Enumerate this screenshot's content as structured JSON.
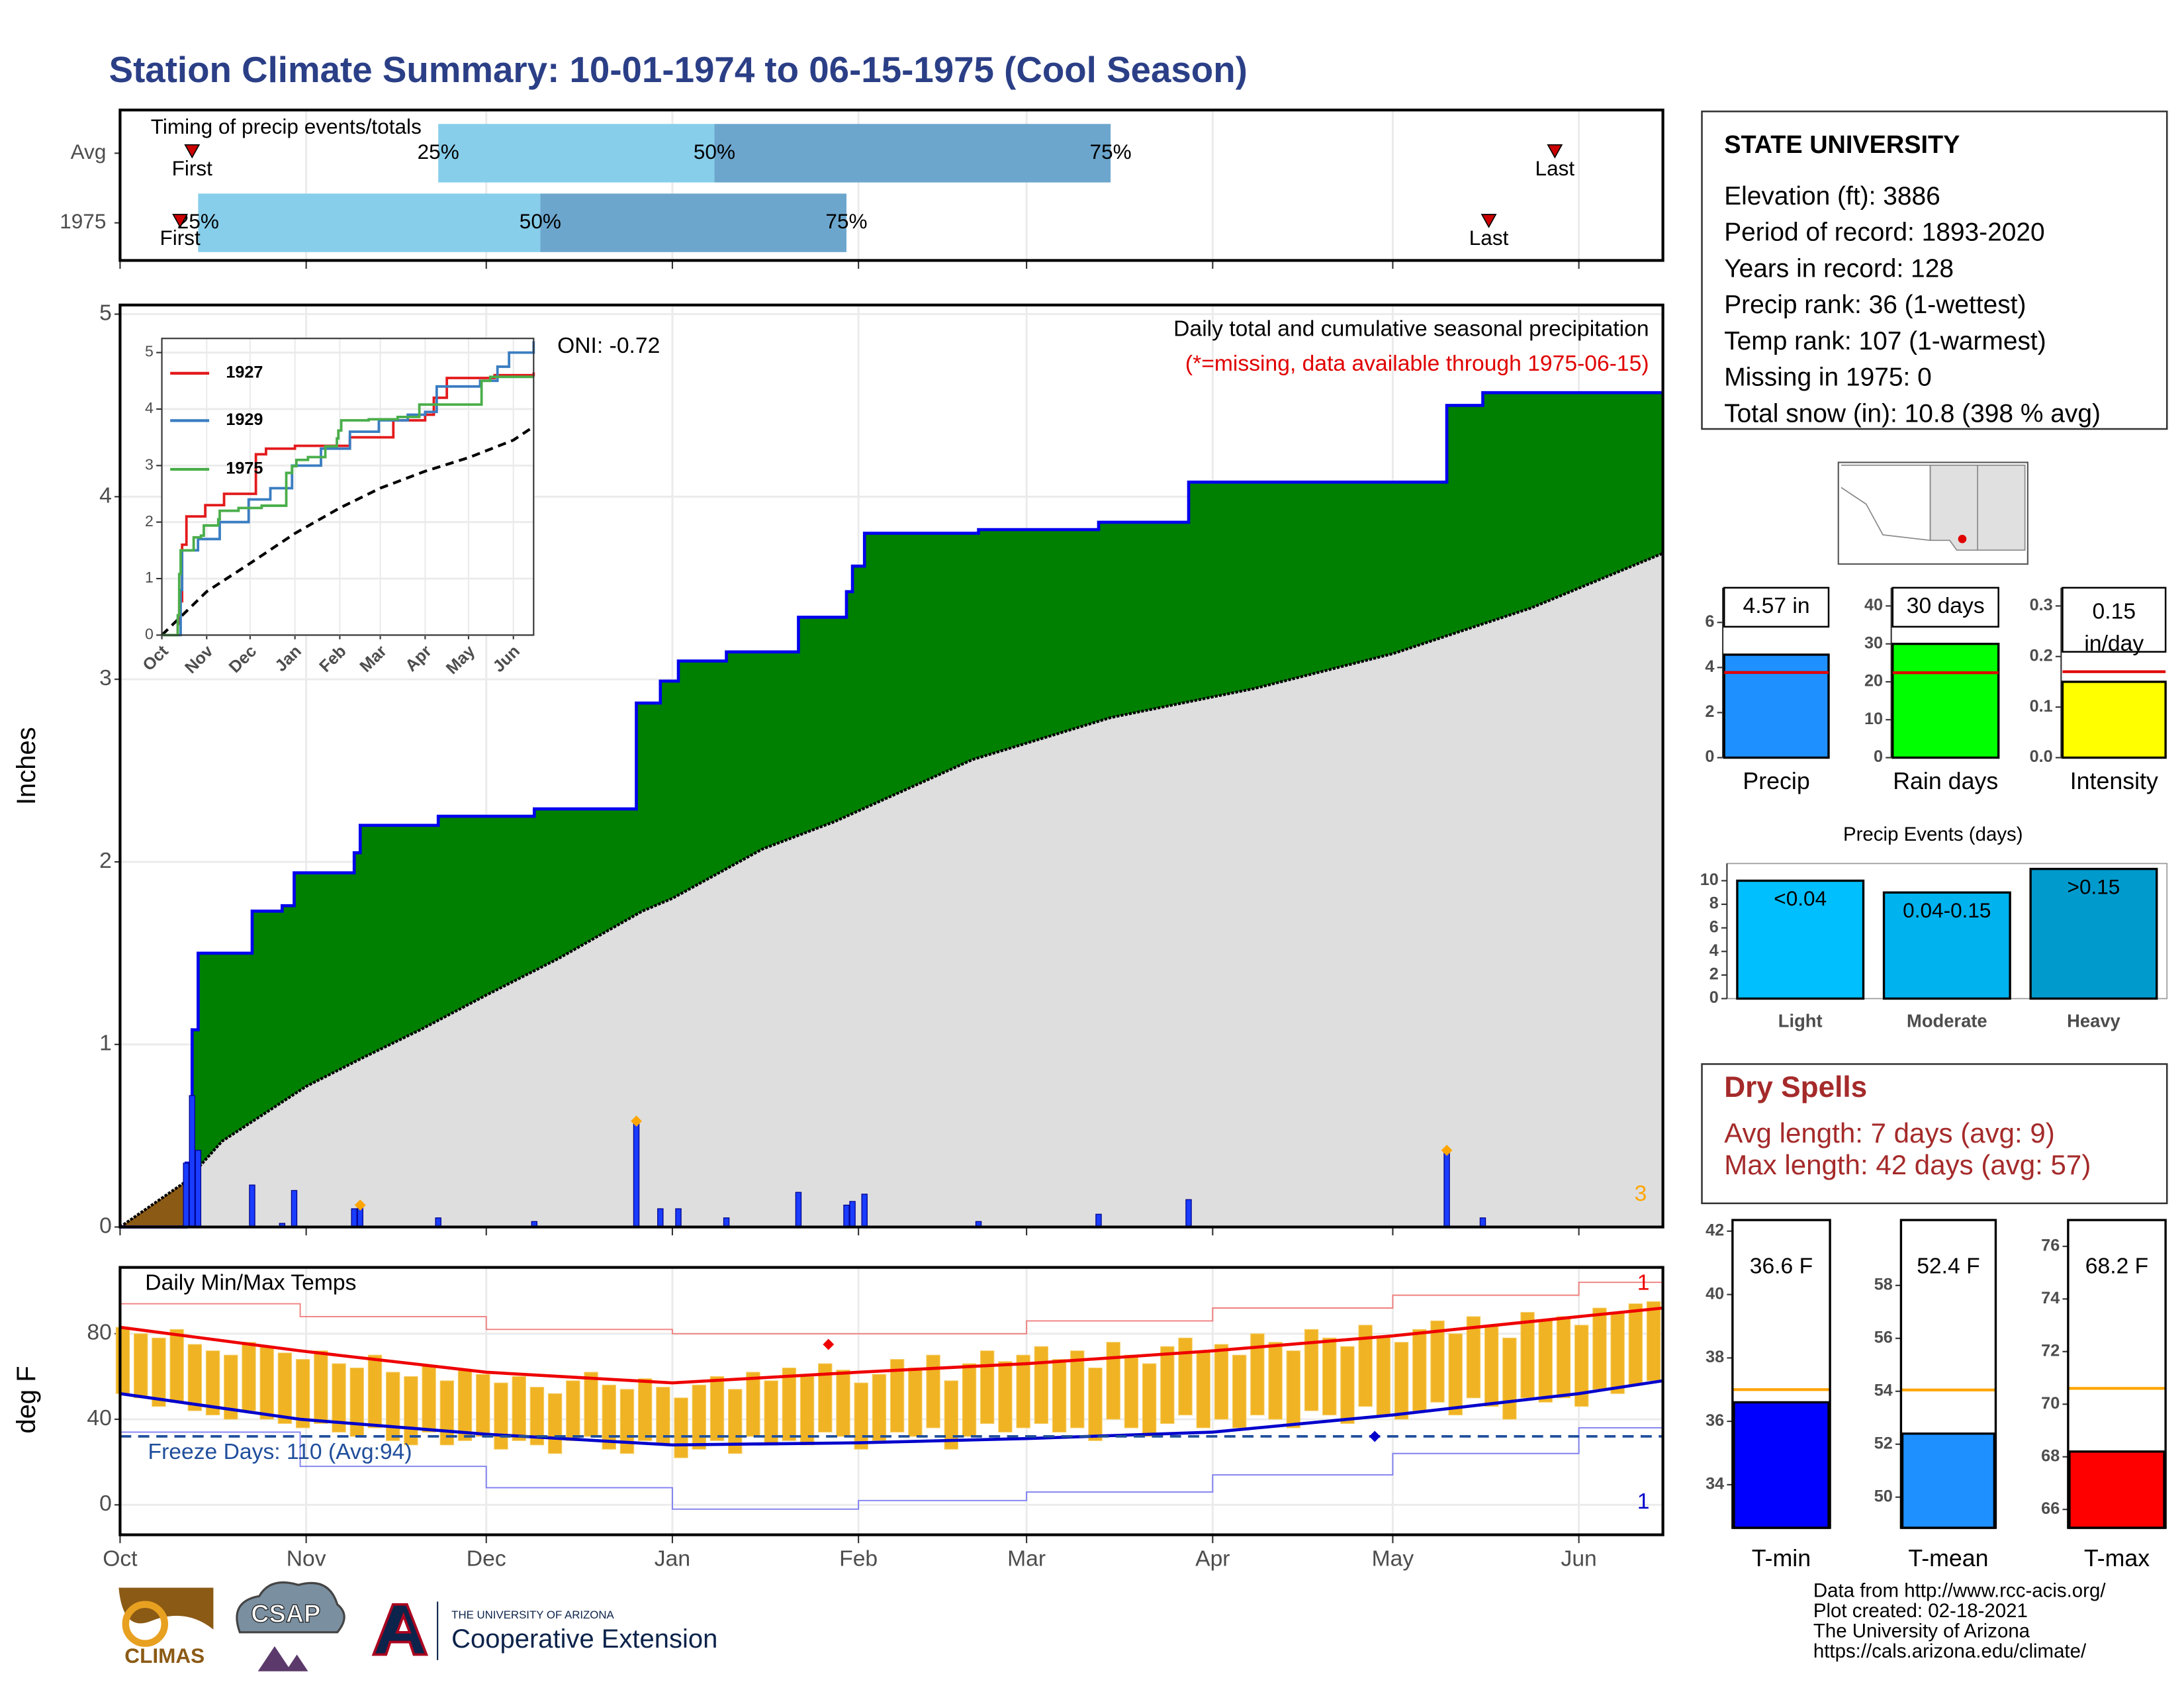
{
  "title": "Station Climate Summary: 10-01-1974 to 06-15-1975 (Cool Season)",
  "chart_data": [
    {
      "type": "timing",
      "title": "Timing of precip events/totals",
      "xlim": [
        0,
        257
      ],
      "xticks": [
        0,
        31,
        61,
        92,
        123,
        151,
        182,
        212,
        243
      ],
      "marker_labels": {
        "first": "First",
        "p25": "25%",
        "p50": "50%",
        "p75": "75%",
        "last": "Last"
      },
      "band_colors": [
        "#87ceeb",
        "#6ca6cd"
      ],
      "marker_color": "#cc0000",
      "rows": [
        {
          "name": "Avg",
          "first": 12,
          "p25": 53,
          "p50": 99,
          "p75": 165,
          "last": 239
        },
        {
          "name": "1975",
          "first": 10,
          "p25": 13,
          "p50": 70,
          "p75": 121,
          "last": 228
        }
      ]
    },
    {
      "type": "precip",
      "title": "Daily total and cumulative seasonal precipitation",
      "subtitle": "(*=missing, data available through 1975-06-15)",
      "annotation": "ONI: -0.72",
      "ylabel": "Inches",
      "corner_note": "3",
      "xlim": [
        0,
        257
      ],
      "ylim": [
        0,
        5.05
      ],
      "yticks": [
        0,
        1,
        2,
        3,
        4,
        5
      ],
      "xticks": [
        0,
        31,
        61,
        92,
        123,
        151,
        182,
        212,
        243
      ],
      "grid": true,
      "cumulative_x": [
        0,
        11,
        12,
        13,
        22,
        27,
        29,
        39,
        40,
        53,
        69,
        86,
        90,
        93,
        101,
        113,
        121,
        122,
        124,
        143,
        163,
        178,
        221,
        227,
        257
      ],
      "cumulative_values": [
        0,
        0.35,
        1.08,
        1.5,
        1.73,
        1.76,
        1.94,
        2.05,
        2.2,
        2.25,
        2.29,
        2.87,
        2.99,
        3.1,
        3.15,
        3.34,
        3.48,
        3.62,
        3.8,
        3.82,
        3.86,
        4.08,
        4.5,
        4.57,
        4.57
      ],
      "normal_x": [
        0,
        11,
        17,
        31,
        40,
        50,
        61,
        73,
        87,
        92,
        107,
        119,
        142,
        165,
        189,
        212,
        235,
        257
      ],
      "normal_values": [
        0,
        0.25,
        0.47,
        0.77,
        0.92,
        1.08,
        1.27,
        1.47,
        1.73,
        1.8,
        2.07,
        2.22,
        2.56,
        2.79,
        2.95,
        3.14,
        3.39,
        3.69
      ],
      "daily_x": [
        11,
        12,
        13,
        22,
        27,
        29,
        39,
        40,
        53,
        69,
        86,
        90,
        93,
        101,
        113,
        121,
        122,
        124,
        143,
        163,
        178,
        221,
        227
      ],
      "daily_values": [
        0.35,
        0.72,
        0.42,
        0.23,
        0.02,
        0.2,
        0.1,
        0.12,
        0.05,
        0.03,
        0.58,
        0.1,
        0.1,
        0.05,
        0.19,
        0.12,
        0.14,
        0.18,
        0.03,
        0.07,
        0.15,
        0.42,
        0.05
      ],
      "record_x": [
        40,
        86,
        221
      ],
      "colors": {
        "surplus": "#008000",
        "deficit": "#8b5a14",
        "normal": "#dedede",
        "line": "#0000ee",
        "bars": "#1a3cff",
        "record": "#ffa500"
      }
    },
    {
      "type": "line",
      "xlim": [
        0,
        257
      ],
      "ylim": [
        0,
        5.25
      ],
      "yticks": [
        0,
        1,
        2,
        3,
        4,
        5
      ],
      "xticks": [
        {
          "value": 0,
          "label": "Oct"
        },
        {
          "value": 31,
          "label": "Nov"
        },
        {
          "value": 61,
          "label": "Dec"
        },
        {
          "value": 92,
          "label": "Jan"
        },
        {
          "value": 123,
          "label": "Feb"
        },
        {
          "value": 151,
          "label": "Mar"
        },
        {
          "value": 182,
          "label": "Apr"
        },
        {
          "value": 212,
          "label": "May"
        },
        {
          "value": 243,
          "label": "Jun"
        }
      ],
      "series": [
        {
          "name": "1927",
          "color": "#e31a1c",
          "x": [
            0,
            11,
            12,
            14,
            17,
            30,
            43,
            65,
            72,
            92,
            130,
            160,
            182,
            188,
            197,
            230,
            257
          ],
          "values": [
            0,
            0.2,
            0.6,
            1.6,
            2.1,
            2.3,
            2.5,
            3.2,
            3.3,
            3.35,
            3.5,
            3.8,
            3.9,
            4.2,
            4.55,
            4.6,
            4.65
          ]
        },
        {
          "name": "1929",
          "color": "#3a7dc1",
          "x": [
            0,
            13,
            14,
            25,
            40,
            60,
            75,
            90,
            110,
            130,
            150,
            170,
            182,
            190,
            220,
            232,
            240,
            257
          ],
          "values": [
            0,
            0.8,
            1.5,
            1.7,
            2.0,
            2.4,
            2.6,
            3.0,
            3.3,
            3.6,
            3.8,
            3.9,
            3.95,
            4.4,
            4.5,
            4.75,
            5.0,
            5.2
          ]
        },
        {
          "name": "1975",
          "color": "#4aae4a",
          "x": [
            0,
            11,
            12,
            13,
            22,
            27,
            29,
            39,
            40,
            53,
            69,
            86,
            90,
            93,
            101,
            113,
            121,
            122,
            124,
            143,
            163,
            178,
            221,
            227,
            257
          ],
          "values": [
            0,
            0.35,
            1.08,
            1.5,
            1.73,
            1.76,
            1.94,
            2.05,
            2.2,
            2.25,
            2.29,
            2.87,
            2.99,
            3.1,
            3.15,
            3.34,
            3.48,
            3.62,
            3.8,
            3.82,
            3.86,
            4.08,
            4.5,
            4.57,
            4.57
          ]
        }
      ],
      "normal": {
        "color": "#000000",
        "x": [
          0,
          31,
          61,
          92,
          123,
          151,
          182,
          212,
          243,
          257
        ],
        "values": [
          0,
          0.77,
          1.27,
          1.8,
          2.25,
          2.6,
          2.9,
          3.14,
          3.45,
          3.69
        ]
      }
    },
    {
      "type": "temp",
      "title": "Daily Min/Max Temps",
      "ylabel": "deg F",
      "annotation": "Freeze Days: 110 (Avg:94)",
      "freeze": 32,
      "xlim": [
        0,
        257
      ],
      "ylim": [
        -14,
        111
      ],
      "yticks": [
        0,
        40,
        80
      ],
      "xticks": [
        {
          "value": 0,
          "label": "Oct"
        },
        {
          "value": 31,
          "label": "Nov"
        },
        {
          "value": 61,
          "label": "Dec"
        },
        {
          "value": 92,
          "label": "Jan"
        },
        {
          "value": 123,
          "label": "Feb"
        },
        {
          "value": 151,
          "label": "Mar"
        },
        {
          "value": 182,
          "label": "Apr"
        },
        {
          "value": 212,
          "label": "May"
        },
        {
          "value": 243,
          "label": "Jun"
        }
      ],
      "daily_x": [
        0,
        3,
        6,
        9,
        12,
        15,
        18,
        21,
        24,
        27,
        30,
        33,
        36,
        39,
        42,
        45,
        48,
        51,
        54,
        57,
        60,
        63,
        66,
        69,
        72,
        75,
        78,
        81,
        84,
        87,
        90,
        93,
        96,
        99,
        102,
        105,
        108,
        111,
        114,
        117,
        120,
        123,
        126,
        129,
        132,
        135,
        138,
        141,
        144,
        147,
        150,
        153,
        156,
        159,
        162,
        165,
        168,
        171,
        174,
        177,
        180,
        183,
        186,
        189,
        192,
        195,
        198,
        201,
        204,
        207,
        210,
        213,
        216,
        219,
        222,
        225,
        228,
        231,
        234,
        237,
        240,
        243,
        246,
        249,
        252,
        255
      ],
      "daily_max": [
        83,
        80,
        78,
        82,
        75,
        72,
        70,
        76,
        74,
        71,
        68,
        72,
        66,
        64,
        70,
        62,
        60,
        65,
        58,
        63,
        61,
        57,
        60,
        55,
        52,
        58,
        62,
        56,
        54,
        59,
        55,
        50,
        56,
        60,
        54,
        62,
        58,
        64,
        60,
        66,
        63,
        57,
        61,
        68,
        64,
        70,
        58,
        66,
        72,
        67,
        70,
        74,
        68,
        72,
        64,
        76,
        70,
        66,
        74,
        78,
        72,
        75,
        70,
        80,
        76,
        72,
        82,
        78,
        74,
        84,
        79,
        76,
        82,
        86,
        80,
        88,
        84,
        78,
        90,
        86,
        88,
        84,
        92,
        90,
        94,
        95
      ],
      "daily_min": [
        52,
        50,
        46,
        48,
        44,
        42,
        40,
        44,
        40,
        38,
        36,
        38,
        34,
        32,
        36,
        30,
        28,
        34,
        28,
        30,
        32,
        26,
        30,
        28,
        24,
        30,
        32,
        26,
        24,
        30,
        28,
        22,
        26,
        30,
        24,
        32,
        28,
        30,
        28,
        34,
        32,
        26,
        30,
        34,
        32,
        36,
        26,
        32,
        38,
        34,
        36,
        38,
        34,
        36,
        30,
        40,
        36,
        32,
        38,
        42,
        36,
        40,
        36,
        42,
        40,
        36,
        44,
        42,
        38,
        46,
        42,
        40,
        44,
        48,
        42,
        50,
        46,
        40,
        50,
        48,
        50,
        46,
        54,
        52,
        56,
        58
      ],
      "normal_max": {
        "color": "#ee0000",
        "x": [
          0,
          30,
          61,
          92,
          123,
          151,
          182,
          212,
          243,
          257
        ],
        "values": [
          83,
          72,
          62,
          57,
          62,
          66,
          72,
          79,
          88,
          92
        ]
      },
      "normal_min": {
        "color": "#0000cc",
        "x": [
          0,
          30,
          61,
          92,
          123,
          151,
          182,
          212,
          243,
          257
        ],
        "values": [
          52,
          40,
          33,
          28,
          29,
          31,
          34,
          42,
          52,
          58
        ]
      },
      "record_high": {
        "color": "#f08080",
        "x": [
          0,
          30,
          61,
          92,
          123,
          151,
          182,
          212,
          243,
          257
        ],
        "values": [
          94,
          88,
          82,
          80,
          80,
          86,
          92,
          98,
          104,
          108
        ],
        "count": 1
      },
      "record_low": {
        "color": "#8080f0",
        "x": [
          0,
          30,
          61,
          92,
          123,
          151,
          182,
          212,
          243,
          257
        ],
        "values": [
          34,
          18,
          8,
          -2,
          2,
          6,
          14,
          24,
          36,
          42
        ],
        "count": 1
      },
      "high_marker": {
        "x": 118,
        "value": 75
      },
      "low_marker": {
        "x": 209,
        "value": 32
      },
      "bar_color": "#f0b323",
      "freeze_color": "#1f4e9c"
    },
    {
      "type": "bar",
      "categories": [
        "Precip"
      ],
      "values": [
        4.57
      ],
      "value_labels": [
        "4.57 in"
      ],
      "average": 3.78,
      "color": "#1e90ff",
      "avg_color": "#e00000",
      "ylim": [
        0,
        7.54
      ],
      "yticks": [
        0,
        2,
        4,
        6
      ]
    },
    {
      "type": "bar",
      "categories": [
        "Rain days"
      ],
      "values": [
        30
      ],
      "value_labels": [
        "30 days"
      ],
      "average": 22.4,
      "color": "#00ff00",
      "avg_color": "#e00000",
      "ylim": [
        0,
        44.8
      ],
      "yticks": [
        0,
        10,
        20,
        30,
        40
      ]
    },
    {
      "type": "bar",
      "categories": [
        "Intensity"
      ],
      "values": [
        0.15
      ],
      "value_labels": [
        "0.15 in/day"
      ],
      "average": 0.17,
      "color": "#ffff00",
      "avg_color": "#e00000",
      "ylim": [
        0,
        0.336
      ],
      "yticks": [
        {
          "value": 0,
          "label": "0.0"
        },
        {
          "value": 0.1,
          "label": "0.1"
        },
        {
          "value": 0.2,
          "label": "0.2"
        },
        {
          "value": 0.3,
          "label": "0.3"
        }
      ]
    },
    {
      "type": "bar",
      "title": "Precip Events (days)",
      "categories": [
        "Light",
        "Moderate",
        "Heavy"
      ],
      "values": [
        10,
        9,
        11
      ],
      "bar_labels": [
        "<0.04",
        "0.04-0.15",
        ">0.15"
      ],
      "colors": [
        "#00bfff",
        "#00b2ee",
        "#009acd"
      ],
      "ylim": [
        0,
        11.46
      ],
      "yticks": [
        0,
        2,
        4,
        6,
        8,
        10
      ]
    },
    {
      "type": "tempbar",
      "categories": [
        "T-min"
      ],
      "values": [
        36.6
      ],
      "value_labels": [
        "36.6 F"
      ],
      "average": 37.0,
      "color": "#0000ff",
      "avg_color": "#ffa500",
      "ylim": [
        32.64,
        42.35
      ],
      "yticks": [
        34,
        36,
        38,
        40,
        42
      ]
    },
    {
      "type": "tempbar",
      "categories": [
        "T-mean"
      ],
      "values": [
        52.4
      ],
      "value_labels": [
        "52.4 F"
      ],
      "average": 54.05,
      "color": "#1e90ff",
      "avg_color": "#ffa500",
      "ylim": [
        48.84,
        60.47
      ],
      "yticks": [
        50,
        52,
        54,
        56,
        58
      ]
    },
    {
      "type": "tempbar",
      "categories": [
        "T-max"
      ],
      "values": [
        68.2
      ],
      "value_labels": [
        "68.2 F"
      ],
      "average": 70.6,
      "color": "#ff0000",
      "avg_color": "#ffa500",
      "ylim": [
        65.3,
        77.0
      ],
      "yticks": [
        66,
        68,
        70,
        72,
        74,
        76
      ]
    }
  ],
  "station": {
    "name": "STATE UNIVERSITY",
    "lines": [
      "Elevation (ft): 3886",
      "Period of record: 1893-2020",
      "Years in record: 128",
      "Precip rank: 36 (1-wettest)",
      "Temp rank: 107 (1-warmest)",
      "Missing in 1975: 0",
      "Total snow (in): 10.8 (398 % avg)"
    ]
  },
  "dry_spells": {
    "title": "Dry Spells",
    "lines": [
      "Avg length: 7 days (avg: 9)",
      "Max length: 42 days (avg: 57)"
    ]
  },
  "logos": {
    "climas": "CLIMAS",
    "csap": "CSAP",
    "ua_small": "THE UNIVERSITY OF ARIZONA",
    "ua_big": "Cooperative Extension"
  },
  "credits": [
    "Data from http://www.rcc-acis.org/",
    "Plot created: 02-18-2021",
    "The University of Arizona",
    "https://cals.arizona.edu/climate/"
  ]
}
